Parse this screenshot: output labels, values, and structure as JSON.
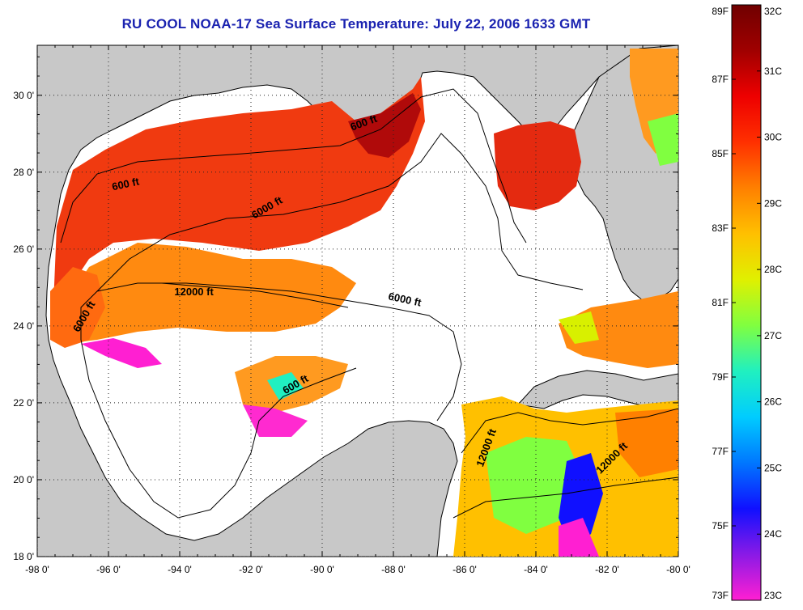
{
  "title": "RU COOL  NOAA-17  Sea Surface Temperature:  July 22, 2006 1633 GMT",
  "lon_ticks": [
    {
      "value": -98,
      "label": "-98 0'"
    },
    {
      "value": -96,
      "label": "-96 0'"
    },
    {
      "value": -94,
      "label": "-94 0'"
    },
    {
      "value": -92,
      "label": "-92 0'"
    },
    {
      "value": -90,
      "label": "-90 0'"
    },
    {
      "value": -88,
      "label": "-88 0'"
    },
    {
      "value": -86,
      "label": "-86 0'"
    },
    {
      "value": -84,
      "label": "-84 0'"
    },
    {
      "value": -82,
      "label": "-82 0'"
    },
    {
      "value": -80,
      "label": "-80 0'"
    }
  ],
  "lat_ticks": [
    {
      "value": 18,
      "label": "18 0'"
    },
    {
      "value": 20,
      "label": "20 0'"
    },
    {
      "value": 22,
      "label": "22 0'"
    },
    {
      "value": 24,
      "label": "24 0'"
    },
    {
      "value": 26,
      "label": "26 0'"
    },
    {
      "value": 28,
      "label": "28 0'"
    },
    {
      "value": 30,
      "label": "30 0'"
    }
  ],
  "extent": {
    "lon": [
      -98,
      -80
    ],
    "lat": [
      18,
      31.3
    ]
  },
  "contour_labels": [
    {
      "text": "600 ft",
      "lon": -95.5,
      "lat": 27.6,
      "angle": -12
    },
    {
      "text": "600 ft",
      "lon": -88.8,
      "lat": 29.2,
      "angle": -20
    },
    {
      "text": "6000 ft",
      "lon": -91.5,
      "lat": 27.0,
      "angle": -30
    },
    {
      "text": "12000 ft",
      "lon": -93.6,
      "lat": 24.8,
      "angle": 0
    },
    {
      "text": "6000 ft",
      "lon": -96.6,
      "lat": 24.2,
      "angle": -60
    },
    {
      "text": "6000 ft",
      "lon": -87.7,
      "lat": 24.6,
      "angle": 12
    },
    {
      "text": "600 ft",
      "lon": -90.7,
      "lat": 22.4,
      "angle": -30
    },
    {
      "text": "12000 ft",
      "lon": -85.3,
      "lat": 20.8,
      "angle": -70
    },
    {
      "text": "12000 ft",
      "lon": -81.8,
      "lat": 20.5,
      "angle": -45
    }
  ],
  "colorbar": {
    "colors": [
      "#ff1fd2",
      "#8a1ae6",
      "#1010ff",
      "#0077ff",
      "#00ccff",
      "#20f0c0",
      "#80ff40",
      "#e0f000",
      "#ffc000",
      "#ff8000",
      "#ff3000",
      "#ee0000",
      "#a00000",
      "#700000"
    ],
    "fahrenheit_labels": [
      "73F",
      "75F",
      "77F",
      "79F",
      "81F",
      "83F",
      "85F",
      "87F",
      "89F"
    ],
    "celsius_labels": [
      "23C",
      "24C",
      "25C",
      "26C",
      "27C",
      "28C",
      "29C",
      "30C",
      "31C",
      "32C"
    ]
  },
  "colors": {
    "land": "#c8c8c8",
    "ocean_no_data": "#ffffff",
    "grid": "#222222"
  }
}
